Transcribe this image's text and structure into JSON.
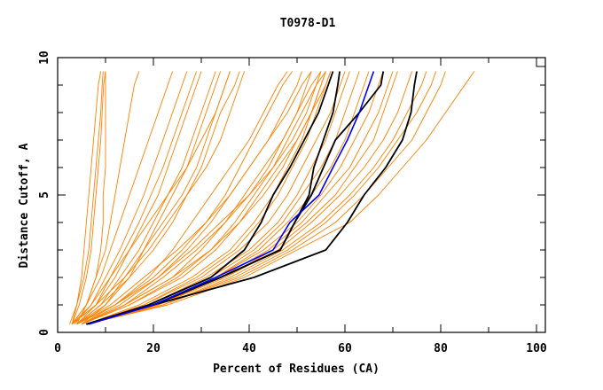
{
  "chart_data": {
    "type": "line",
    "title": "T0978-D1",
    "xlabel": "Percent of Residues (CA)",
    "ylabel": "Distance Cutoff, A",
    "xlim": [
      0,
      100
    ],
    "ylim": [
      0,
      10
    ],
    "x_ticks": [
      "0",
      "20",
      "40",
      "60",
      "80",
      "100"
    ],
    "x_tick_values": [
      0,
      20,
      40,
      60,
      80,
      100
    ],
    "y_ticks": [
      "0",
      "5",
      "10"
    ],
    "y_tick_values": [
      0,
      5,
      10
    ],
    "grid": false,
    "colors": {
      "other_models": "#ff8000",
      "highlight_black": "#000000",
      "highlight_blue": "#0000ff"
    },
    "y_levels": [
      0.3,
      1,
      2,
      3,
      4,
      5,
      6,
      7,
      8,
      9,
      9.5
    ],
    "orange_series_x": [
      [
        3,
        4,
        5,
        5.5,
        6,
        6.5,
        7,
        7.5,
        8,
        8.5,
        9
      ],
      [
        3,
        4.5,
        6,
        7,
        7.5,
        8,
        8.5,
        9,
        9.3,
        9.6,
        10
      ],
      [
        2.5,
        4,
        5.5,
        6.5,
        7,
        7.5,
        8,
        8.5,
        9,
        9.3,
        9.5
      ],
      [
        3,
        6,
        8,
        9,
        9.5,
        9.5,
        10,
        10,
        10,
        10,
        10
      ],
      [
        4,
        6,
        8,
        10,
        11,
        12,
        13,
        14,
        15,
        16,
        17
      ],
      [
        3,
        6,
        9,
        11,
        13,
        15,
        17,
        19,
        21,
        23,
        24
      ],
      [
        3.5,
        7,
        10,
        13,
        15.5,
        18,
        20,
        22,
        24,
        26,
        27
      ],
      [
        4,
        8,
        11,
        14,
        17,
        19.5,
        22,
        24,
        26,
        28,
        29
      ],
      [
        3,
        8,
        12,
        15,
        18,
        21,
        23,
        25,
        27,
        29,
        30
      ],
      [
        4,
        9,
        13,
        17,
        20,
        23,
        26,
        28,
        30,
        32,
        33
      ],
      [
        4,
        10,
        15,
        18,
        21,
        24,
        27,
        29,
        31,
        33,
        34
      ],
      [
        3,
        7,
        11,
        15,
        19,
        23,
        27,
        30,
        33,
        35,
        36
      ],
      [
        5,
        10,
        14,
        18,
        22,
        26,
        29,
        31,
        33,
        35,
        36
      ],
      [
        4,
        9,
        15,
        20,
        24,
        27,
        30,
        32,
        34,
        37,
        38
      ],
      [
        3,
        8,
        14,
        19,
        23,
        27,
        31,
        34,
        36,
        38,
        39
      ],
      [
        4,
        12,
        19,
        24,
        28,
        32,
        36,
        40,
        43,
        46,
        48
      ],
      [
        5,
        12,
        20,
        26,
        31,
        35,
        38,
        41,
        44,
        47,
        49
      ],
      [
        5,
        13,
        21,
        27,
        32,
        36,
        40,
        44,
        47,
        50,
        51
      ],
      [
        4,
        11,
        18,
        25,
        31,
        36,
        40,
        44,
        48,
        51,
        53
      ],
      [
        5,
        14,
        22,
        29,
        35,
        40,
        44,
        47,
        50,
        52,
        53
      ],
      [
        5,
        14,
        24,
        30,
        35,
        39,
        43,
        47,
        50,
        53,
        55
      ],
      [
        4,
        12,
        21,
        28,
        34,
        40,
        45,
        49,
        52,
        54,
        55
      ],
      [
        5,
        15,
        25,
        32,
        37,
        41,
        45,
        48,
        51,
        54,
        56
      ],
      [
        5,
        14,
        24,
        32,
        38,
        42,
        46,
        50,
        53,
        55,
        56
      ],
      [
        5,
        15,
        26,
        33,
        38,
        43,
        47,
        50,
        53,
        56,
        57
      ],
      [
        6,
        17,
        28,
        36,
        41,
        45,
        48,
        51,
        53,
        55,
        56
      ],
      [
        6,
        18,
        29,
        37,
        42,
        46,
        49,
        52,
        54,
        56,
        57
      ],
      [
        6,
        18,
        30,
        38,
        44,
        48,
        51,
        54,
        57,
        59,
        60
      ],
      [
        6,
        19,
        31,
        40,
        46,
        50,
        53,
        56,
        58,
        60,
        61
      ],
      [
        6,
        19,
        32,
        41,
        47,
        51,
        55,
        58,
        60,
        62,
        63
      ],
      [
        6,
        20,
        33,
        42,
        48,
        53,
        57,
        60,
        62,
        64,
        65
      ],
      [
        6,
        20,
        33,
        43,
        50,
        55,
        59,
        62,
        65,
        67,
        68
      ],
      [
        6,
        21,
        34,
        44,
        51,
        56,
        61,
        64,
        67,
        69,
        70
      ],
      [
        6,
        21,
        35,
        45,
        52,
        58,
        62,
        66,
        68,
        70,
        71
      ],
      [
        6,
        21,
        35,
        46,
        53,
        59,
        64,
        68,
        71,
        73,
        74
      ],
      [
        6,
        22,
        36,
        47,
        55,
        61,
        66,
        70,
        73,
        76,
        77
      ],
      [
        6,
        22,
        37,
        48,
        56,
        62,
        67,
        71,
        75,
        78,
        79
      ],
      [
        6,
        22,
        38,
        49,
        58,
        64,
        69,
        74,
        77,
        80,
        81
      ],
      [
        6,
        23,
        39,
        50,
        61,
        67,
        72,
        77,
        81,
        85,
        87
      ]
    ],
    "black_series_x": [
      [
        6,
        19,
        32,
        39,
        42.5,
        45,
        48.5,
        51.5,
        54.5,
        56.5,
        57.5
      ],
      [
        6,
        20,
        34,
        46.5,
        49.5,
        52.5,
        53.5,
        55.5,
        57.5,
        58.5,
        58.9
      ],
      [
        6,
        20,
        34,
        46.5,
        49.5,
        53,
        55.5,
        58,
        63,
        67.5,
        68
      ],
      [
        6,
        20,
        41,
        56,
        60.5,
        64,
        68.5,
        72,
        73.8,
        74.5,
        75
      ]
    ],
    "blue_series_x": [
      6.5,
      20,
      33,
      45,
      48.5,
      54.6,
      57.5,
      60.5,
      63,
      65,
      66
    ]
  }
}
